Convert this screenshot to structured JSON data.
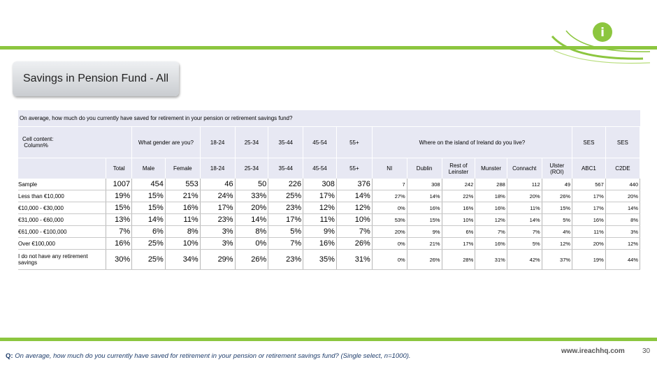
{
  "slide": {
    "title": "Savings in Pension Fund - All",
    "page_number": "30",
    "website": "www.ireachhq.com",
    "footer_q_label": "Q:",
    "footer_question": "On average, how much do you currently have saved for retirement in your pension or retirement savings fund? (Single select, n=1000).",
    "logo_letter": "i"
  },
  "table": {
    "question": "On average, how much do you currently have saved for retirement in your pension or retirement savings fund?",
    "cell_content_line1": "Cell content:",
    "cell_content_line2": "Column%",
    "banners": {
      "gender": "What gender are you?",
      "age_18_24": "18-24",
      "age_25_34": "25-34",
      "age_35_44": "35-44",
      "age_45_54": "45-54",
      "age_55": "55+",
      "region": "Where on the island of Ireland do you live?",
      "ses1": "SES",
      "ses2": "SES"
    },
    "columns": [
      "Total",
      "Male",
      "Female",
      "18-24",
      "25-34",
      "35-44",
      "45-54",
      "55+",
      "NI",
      "Dublin",
      "Rest of Leinster",
      "Munster",
      "Connacht",
      "Ulster (ROI)",
      "ABC1",
      "C2DE"
    ],
    "rows": [
      {
        "label": "Sample",
        "values": [
          "1007",
          "454",
          "553",
          "46",
          "50",
          "226",
          "308",
          "376",
          "7",
          "308",
          "242",
          "288",
          "112",
          "49",
          "567",
          "440"
        ]
      },
      {
        "label": "Less than €10,000",
        "values": [
          "19%",
          "15%",
          "21%",
          "24%",
          "33%",
          "25%",
          "17%",
          "14%",
          "27%",
          "14%",
          "22%",
          "18%",
          "20%",
          "26%",
          "17%",
          "20%"
        ]
      },
      {
        "label": "€10,000 - €30,000",
        "values": [
          "15%",
          "15%",
          "16%",
          "17%",
          "20%",
          "23%",
          "12%",
          "12%",
          "0%",
          "16%",
          "16%",
          "16%",
          "11%",
          "15%",
          "17%",
          "14%"
        ]
      },
      {
        "label": "€31,000 - €60,000",
        "values": [
          "13%",
          "14%",
          "11%",
          "23%",
          "14%",
          "17%",
          "11%",
          "10%",
          "53%",
          "15%",
          "10%",
          "12%",
          "14%",
          "5%",
          "16%",
          "8%"
        ]
      },
      {
        "label": "€61,000 - €100,000",
        "values": [
          "7%",
          "6%",
          "8%",
          "3%",
          "8%",
          "5%",
          "9%",
          "7%",
          "20%",
          "9%",
          "6%",
          "7%",
          "7%",
          "4%",
          "11%",
          "3%"
        ]
      },
      {
        "label": "Over €100,000",
        "values": [
          "16%",
          "25%",
          "10%",
          "3%",
          "0%",
          "7%",
          "16%",
          "26%",
          "0%",
          "21%",
          "17%",
          "16%",
          "5%",
          "12%",
          "20%",
          "12%"
        ]
      },
      {
        "label": "I do not have any retirement savings",
        "values": [
          "30%",
          "25%",
          "34%",
          "29%",
          "26%",
          "23%",
          "35%",
          "31%",
          "0%",
          "26%",
          "28%",
          "31%",
          "42%",
          "37%",
          "19%",
          "44%"
        ]
      }
    ]
  }
}
